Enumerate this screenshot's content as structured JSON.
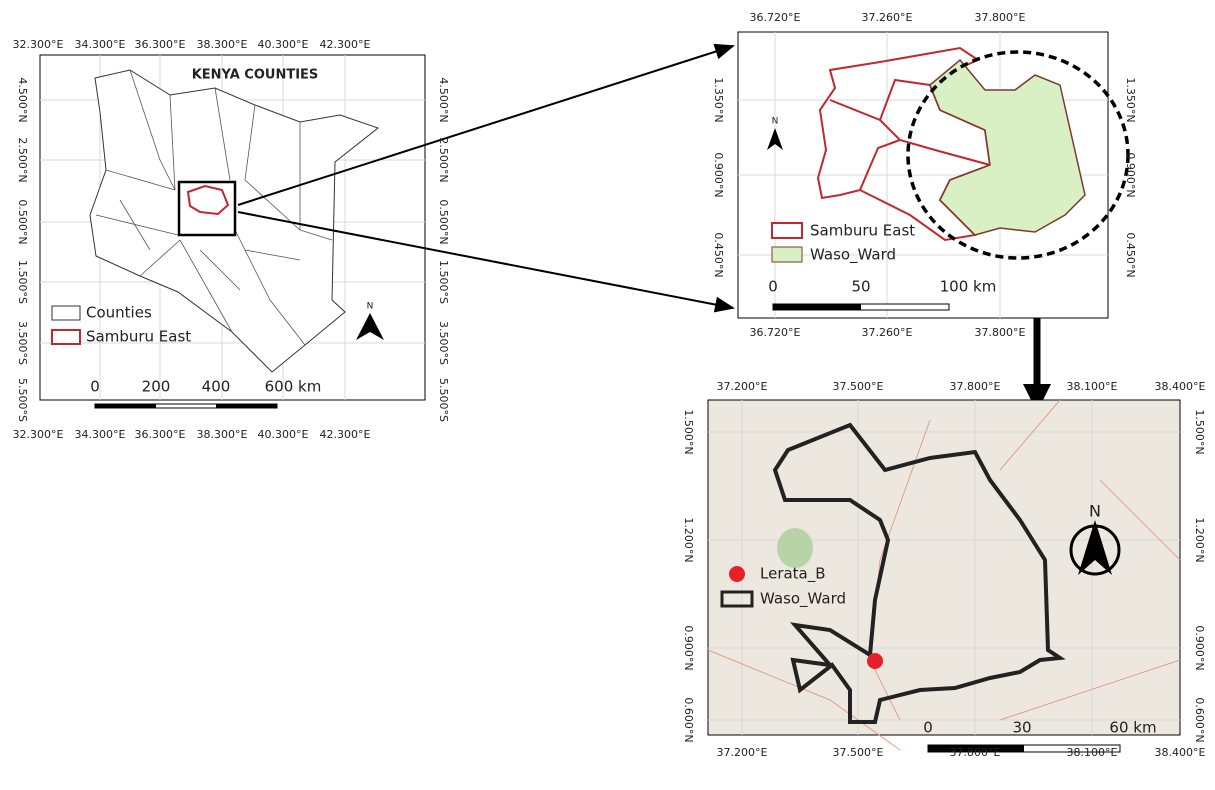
{
  "panel_kenya": {
    "title": "KENYA COUNTIES",
    "lon_labels": [
      "32.300°E",
      "34.300°E",
      "36.300°E",
      "38.300°E",
      "40.300°E",
      "42.300°E"
    ],
    "lat_labels": [
      "4.500°N",
      "2.500°N",
      "0.500°N",
      "1.500°S",
      "3.500°S",
      "5.500°S"
    ],
    "legend": [
      "Counties",
      "Samburu East"
    ],
    "scale_labels": [
      "0",
      "200",
      "400",
      "600 km"
    ],
    "north": "N"
  },
  "panel_samburu": {
    "lon_labels": [
      "36.720°E",
      "37.260°E",
      "37.800°E"
    ],
    "lat_labels": [
      "1.350°N",
      "0.900°N",
      "0.450°N"
    ],
    "legend": [
      "Samburu East",
      "Waso_Ward"
    ],
    "scale_labels": [
      "0",
      "50",
      "100 km"
    ],
    "north": "N"
  },
  "panel_waso": {
    "lon_labels": [
      "37.200°E",
      "37.500°E",
      "37.800°E",
      "38.100°E",
      "38.400°E"
    ],
    "lat_labels": [
      "1.500°N",
      "1.200°N",
      "0.900°N",
      "0.600°N"
    ],
    "legend": [
      "Lerata_B",
      "Waso_Ward"
    ],
    "scale_labels": [
      "0",
      "30",
      "60 km"
    ],
    "north": "N"
  }
}
